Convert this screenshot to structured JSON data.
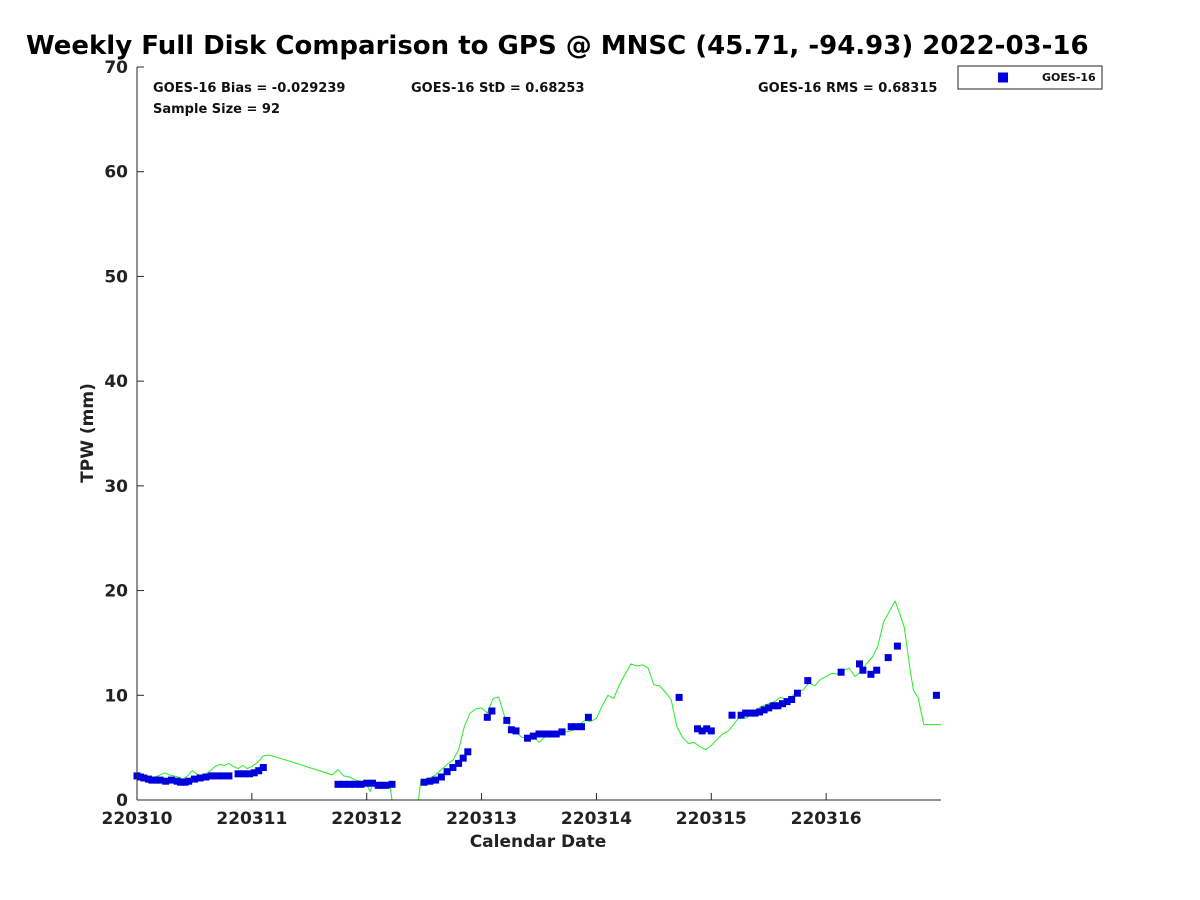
{
  "chart_data": {
    "type": "scatter",
    "title": "Weekly Full Disk Comparison to GPS @ MNSC (45.71, -94.93) 2022-03-16",
    "xlabel": "Calendar Date",
    "ylabel": "TPW (mm)",
    "xlim": [
      0,
      7
    ],
    "ylim": [
      0,
      70
    ],
    "x_ticks": [
      0,
      1,
      2,
      3,
      4,
      5,
      6
    ],
    "x_tick_labels": [
      "220310",
      "220311",
      "220312",
      "220313",
      "220314",
      "220315",
      "220316"
    ],
    "y_ticks": [
      0,
      10,
      20,
      30,
      40,
      50,
      60,
      70
    ],
    "y_tick_labels": [
      "0",
      "10",
      "20",
      "30",
      "40",
      "50",
      "60",
      "70"
    ],
    "legend": {
      "position": "top-right-outside",
      "entries": [
        "GOES-16"
      ]
    },
    "stats": {
      "bias": "GOES-16 Bias = -0.029239",
      "std": "GOES-16 StD = 0.68253",
      "rms": "GOES-16 RMS = 0.68315",
      "sample": "Sample Size = 92"
    },
    "colors": {
      "goes16": "#0000dd",
      "gps": "#22ee22"
    },
    "series": [
      {
        "name": "GPS",
        "kind": "line",
        "x": [
          0.0,
          0.04,
          0.08,
          0.12,
          0.16,
          0.2,
          0.24,
          0.28,
          0.32,
          0.36,
          0.4,
          0.44,
          0.48,
          0.52,
          0.56,
          0.6,
          0.64,
          0.68,
          0.72,
          0.76,
          0.8,
          0.84,
          0.88,
          0.92,
          0.96,
          1.0,
          1.05,
          1.1,
          1.15,
          1.3,
          1.5,
          1.7,
          1.75,
          1.8,
          1.85,
          1.9,
          1.95,
          2.0,
          2.03,
          2.06,
          2.1,
          2.15,
          2.2,
          2.22
        ],
        "y": [
          2.4,
          2.5,
          2.3,
          2.1,
          2.2,
          2.4,
          2.6,
          2.4,
          2.3,
          2.2,
          2.0,
          2.3,
          2.8,
          2.5,
          2.3,
          2.5,
          2.8,
          3.2,
          3.4,
          3.3,
          3.5,
          3.2,
          3.0,
          3.3,
          3.0,
          3.2,
          3.6,
          4.2,
          4.3,
          3.8,
          3.1,
          2.4,
          2.9,
          2.3,
          2.2,
          1.9,
          1.8,
          1.5,
          0.8,
          1.7,
          1.5,
          1.4,
          1.6,
          0.0
        ],
        "break_after_index": 43
      },
      {
        "name": "GPS",
        "kind": "line",
        "x": [
          2.45,
          2.47,
          2.5,
          2.55,
          2.6,
          2.65,
          2.7,
          2.75,
          2.8,
          2.85,
          2.9,
          2.95,
          3.0,
          3.05,
          3.1,
          3.15,
          3.2,
          3.25,
          3.3,
          3.35,
          3.4,
          3.45,
          3.5,
          3.55,
          3.6,
          3.65,
          3.7,
          3.75,
          3.8,
          3.85,
          3.9,
          3.95,
          4.0,
          4.05,
          4.1,
          4.15,
          4.2,
          4.25,
          4.3,
          4.35,
          4.4,
          4.45,
          4.5,
          4.55,
          4.6,
          4.65,
          4.7,
          4.75,
          4.8,
          4.85,
          4.9,
          4.95,
          5.0,
          5.05,
          5.1,
          5.15,
          5.2,
          5.25,
          5.3,
          5.35,
          5.4,
          5.45,
          5.5,
          5.55,
          5.6,
          5.65,
          5.7,
          5.75,
          5.8,
          5.85,
          5.9,
          5.95,
          6.0,
          6.05,
          6.1,
          6.15,
          6.2,
          6.25,
          6.3,
          6.35,
          6.4,
          6.45,
          6.5,
          6.55,
          6.6,
          6.65,
          6.68,
          6.7,
          6.73,
          6.76,
          6.8,
          6.85,
          6.9,
          6.95,
          7.0
        ],
        "y": [
          0.0,
          1.8,
          1.9,
          2.1,
          2.4,
          2.9,
          3.4,
          3.8,
          4.8,
          7.0,
          8.3,
          8.7,
          8.8,
          8.3,
          9.7,
          9.8,
          8.0,
          7.0,
          6.5,
          6.0,
          5.9,
          6.2,
          5.5,
          6.0,
          6.4,
          6.1,
          6.6,
          6.5,
          6.7,
          7.2,
          7.6,
          7.5,
          7.8,
          9.0,
          10.0,
          9.7,
          11.0,
          12.0,
          13.0,
          12.8,
          12.9,
          12.6,
          11.0,
          10.9,
          10.3,
          9.6,
          7.0,
          6.0,
          5.4,
          5.5,
          5.1,
          4.8,
          5.2,
          5.8,
          6.3,
          6.6,
          7.3,
          8.0,
          7.8,
          8.2,
          8.7,
          9.0,
          9.2,
          9.4,
          9.8,
          9.6,
          9.9,
          10.4,
          10.5,
          11.2,
          10.9,
          11.5,
          11.8,
          12.1,
          12.0,
          12.4,
          12.6,
          11.8,
          12.2,
          13.0,
          13.6,
          14.7,
          17.0,
          18.0,
          19.0,
          17.5,
          16.5,
          15.0,
          12.5,
          10.5,
          9.8,
          7.2,
          7.2,
          7.2,
          7.2
        ]
      },
      {
        "name": "GOES-16",
        "kind": "scatter",
        "x": [
          0.0,
          0.03,
          0.06,
          0.1,
          0.13,
          0.17,
          0.2,
          0.25,
          0.3,
          0.35,
          0.38,
          0.42,
          0.45,
          0.5,
          0.55,
          0.6,
          0.65,
          0.7,
          0.75,
          0.8,
          0.88,
          0.93,
          0.98,
          1.02,
          1.06,
          1.1,
          1.75,
          1.8,
          1.85,
          1.9,
          1.95,
          2.0,
          2.05,
          2.1,
          2.13,
          2.17,
          2.22,
          2.5,
          2.55,
          2.6,
          2.65,
          2.7,
          2.75,
          2.8,
          2.84,
          2.88,
          3.05,
          3.09,
          3.22,
          3.26,
          3.3,
          3.4,
          3.45,
          3.5,
          3.55,
          3.6,
          3.65,
          3.7,
          3.78,
          3.82,
          3.87,
          3.93,
          4.72,
          4.88,
          4.92,
          4.96,
          5.0,
          5.18,
          5.26,
          5.3,
          5.34,
          5.38,
          5.42,
          5.46,
          5.5,
          5.54,
          5.58,
          5.62,
          5.66,
          5.7,
          5.75,
          5.84,
          6.13,
          6.29,
          6.32,
          6.39,
          6.44,
          6.54,
          6.62,
          6.96
        ],
        "y": [
          2.3,
          2.2,
          2.1,
          2.0,
          1.9,
          1.9,
          1.9,
          1.8,
          1.9,
          1.8,
          1.7,
          1.7,
          1.8,
          2.0,
          2.1,
          2.2,
          2.3,
          2.3,
          2.3,
          2.3,
          2.5,
          2.5,
          2.5,
          2.6,
          2.8,
          3.1,
          1.5,
          1.5,
          1.5,
          1.5,
          1.5,
          1.6,
          1.6,
          1.4,
          1.4,
          1.4,
          1.5,
          1.7,
          1.8,
          1.9,
          2.2,
          2.7,
          3.1,
          3.5,
          4.0,
          4.6,
          7.9,
          8.5,
          7.6,
          6.7,
          6.6,
          5.9,
          6.1,
          6.3,
          6.3,
          6.3,
          6.3,
          6.5,
          7.0,
          7.0,
          7.0,
          7.9,
          9.8,
          6.8,
          6.6,
          6.8,
          6.6,
          8.1,
          8.1,
          8.3,
          8.3,
          8.3,
          8.4,
          8.6,
          8.8,
          9.0,
          9.0,
          9.2,
          9.4,
          9.6,
          10.2,
          11.4,
          12.2,
          13.0,
          12.4,
          12.0,
          12.4,
          13.6,
          14.7,
          10.0
        ]
      }
    ]
  }
}
